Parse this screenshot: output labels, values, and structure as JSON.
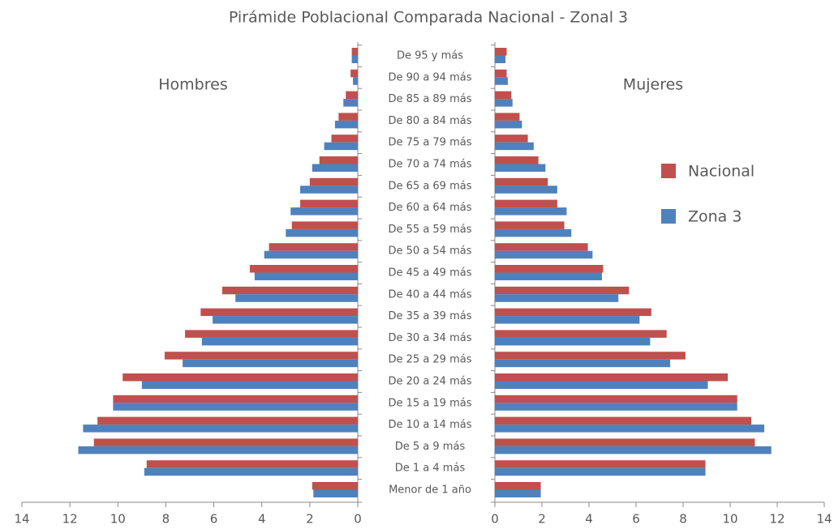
{
  "chart_data": {
    "type": "pyramid",
    "title": "Pirámide Poblacional Comparada Nacional - Zonal 3",
    "groups": [
      "Hombres",
      "Mujeres"
    ],
    "categories": [
      "De 95 y más",
      "De 90 a 94 más",
      "De 85 a 89 más",
      "De 80 a 84 más",
      "De 75 a 79 más",
      "De 70 a 74 más",
      "De 65 a 69 más",
      "De 60 a 64 más",
      "De 55 a 59 más",
      "De 50 a 54 más",
      "De 45 a 49 más",
      "De 40 a 44 más",
      "De 35 a 39 más",
      "De 30 a 34 más",
      "De 25 a 29 más",
      "De 20 a 24 más",
      "De 15 a 19 más",
      "De 10 a 14 más",
      "De 5 a 9 más",
      "De 1 a 4 más",
      "Menor de 1 año"
    ],
    "series": [
      {
        "name": "Nacional",
        "color": "#c0504d",
        "values": [
          [
            0.25,
            0.3,
            0.5,
            0.8,
            1.1,
            1.6,
            2.0,
            2.4,
            2.75,
            3.7,
            4.5,
            5.65,
            6.55,
            7.2,
            8.05,
            9.8,
            10.2,
            10.85,
            11.0,
            8.8,
            1.9
          ],
          [
            0.5,
            0.5,
            0.7,
            1.05,
            1.4,
            1.85,
            2.25,
            2.65,
            2.95,
            3.95,
            4.6,
            5.7,
            6.65,
            7.3,
            8.1,
            9.9,
            10.3,
            10.9,
            11.05,
            8.95,
            1.95
          ]
        ]
      },
      {
        "name": "Zona 3",
        "color": "#4f81bd",
        "values": [
          [
            0.25,
            0.2,
            0.6,
            0.95,
            1.4,
            1.9,
            2.4,
            2.8,
            3.0,
            3.9,
            4.3,
            5.1,
            6.05,
            6.5,
            7.3,
            9.0,
            10.2,
            11.45,
            11.65,
            8.9,
            1.85
          ],
          [
            0.45,
            0.55,
            0.75,
            1.15,
            1.65,
            2.15,
            2.65,
            3.05,
            3.25,
            4.15,
            4.55,
            5.25,
            6.15,
            6.6,
            7.45,
            9.05,
            10.3,
            11.45,
            11.75,
            8.95,
            1.95
          ]
        ]
      }
    ],
    "xlim": [
      0,
      14
    ],
    "xticks": [
      0,
      2,
      4,
      6,
      8,
      10,
      12,
      14
    ],
    "legend": "right"
  }
}
